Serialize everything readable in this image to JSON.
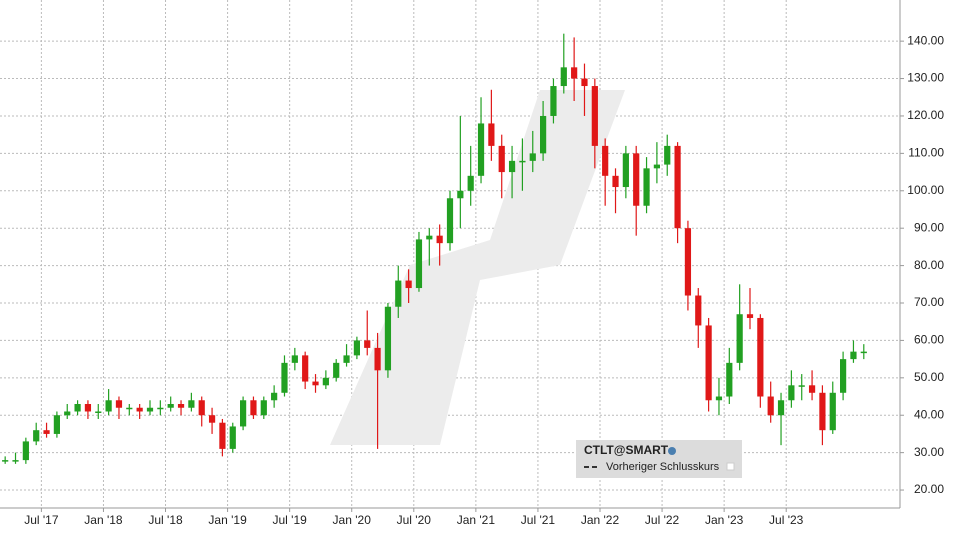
{
  "chart_data": {
    "type": "candlestick",
    "legend": {
      "symbol": "CTLT@SMART",
      "previous_close": "Vorheriger Schlusskurs"
    },
    "x": [
      "2017-03",
      "2017-04",
      "2017-05",
      "2017-06",
      "2017-07",
      "2017-08",
      "2017-09",
      "2017-10",
      "2017-11",
      "2017-12",
      "2018-01",
      "2018-02",
      "2018-03",
      "2018-04",
      "2018-05",
      "2018-06",
      "2018-07",
      "2018-08",
      "2018-09",
      "2018-10",
      "2018-11",
      "2018-12",
      "2019-01",
      "2019-02",
      "2019-03",
      "2019-04",
      "2019-05",
      "2019-06",
      "2019-07",
      "2019-08",
      "2019-09",
      "2019-10",
      "2019-11",
      "2019-12",
      "2020-01",
      "2020-02",
      "2020-03",
      "2020-04",
      "2020-05",
      "2020-06",
      "2020-07",
      "2020-08",
      "2020-09",
      "2020-10",
      "2020-11",
      "2020-12",
      "2021-01",
      "2021-02",
      "2021-03",
      "2021-04",
      "2021-05",
      "2021-06",
      "2021-07",
      "2021-08",
      "2021-09",
      "2021-10",
      "2021-11",
      "2021-12",
      "2022-01",
      "2022-02",
      "2022-03",
      "2022-04",
      "2022-05",
      "2022-06",
      "2022-07",
      "2022-08",
      "2022-09",
      "2022-10",
      "2022-11",
      "2022-12",
      "2023-01",
      "2023-02",
      "2023-03",
      "2023-04",
      "2023-05",
      "2023-06",
      "2023-07",
      "2023-08",
      "2023-09",
      "2023-10",
      "2023-11",
      "2023-12",
      "2024-01",
      "2024-02"
    ],
    "open": [
      28,
      28,
      28,
      33,
      36,
      35,
      40,
      41,
      43,
      41,
      41,
      44,
      42,
      42,
      41,
      42,
      42,
      43,
      42,
      44,
      40,
      38,
      31,
      37,
      44,
      40,
      44,
      46,
      54,
      56,
      49,
      48,
      50,
      54,
      56,
      60,
      58,
      52,
      69,
      76,
      74,
      87,
      88,
      86,
      98,
      100,
      104,
      118,
      112,
      105,
      108,
      108,
      110,
      120,
      128,
      133,
      130,
      128,
      112,
      104,
      101,
      110,
      96,
      106,
      107,
      112,
      90,
      72,
      64,
      44,
      45,
      54,
      67,
      66,
      45,
      40,
      44,
      48,
      48,
      46,
      36,
      46,
      55,
      57
    ],
    "high": [
      29,
      30,
      34,
      38,
      38,
      41,
      43,
      44,
      44,
      43,
      47,
      45,
      43,
      43,
      44,
      44,
      45,
      44,
      46,
      45,
      42,
      39,
      38,
      45,
      45,
      45,
      48,
      56,
      58,
      57,
      51,
      52,
      55,
      59,
      61,
      68,
      62,
      70,
      80,
      79,
      89,
      90,
      91,
      100,
      120,
      112,
      125,
      127,
      115,
      112,
      114,
      116,
      124,
      130,
      142,
      141,
      134,
      130,
      114,
      106,
      112,
      112,
      109,
      113,
      115,
      113,
      92,
      74,
      66,
      50,
      58,
      75,
      74,
      67,
      49,
      46,
      52,
      51,
      52,
      48,
      49,
      57,
      60,
      59
    ],
    "low": [
      27,
      27,
      27,
      32,
      34,
      34,
      39,
      40,
      39,
      39,
      40,
      39,
      40,
      39,
      40,
      40,
      41,
      40,
      41,
      37,
      35,
      29,
      30,
      36,
      39,
      39,
      42,
      45,
      52,
      47,
      46,
      47,
      49,
      53,
      55,
      56,
      31,
      50,
      66,
      70,
      73,
      80,
      80,
      84,
      90,
      96,
      102,
      108,
      98,
      98,
      100,
      105,
      108,
      118,
      126,
      124,
      120,
      106,
      96,
      94,
      98,
      88,
      94,
      102,
      104,
      86,
      68,
      58,
      41,
      40,
      43,
      52,
      63,
      42,
      38,
      32,
      42,
      44,
      44,
      32,
      35,
      44,
      54,
      55
    ],
    "close": [
      28,
      28,
      33,
      36,
      35,
      40,
      41,
      43,
      41,
      41,
      44,
      42,
      42,
      41,
      42,
      42,
      43,
      42,
      44,
      40,
      38,
      31,
      37,
      44,
      40,
      44,
      46,
      54,
      56,
      49,
      48,
      50,
      54,
      56,
      60,
      58,
      52,
      69,
      76,
      74,
      87,
      88,
      86,
      98,
      100,
      104,
      118,
      112,
      105,
      108,
      108,
      110,
      120,
      128,
      133,
      130,
      128,
      112,
      104,
      101,
      110,
      96,
      106,
      107,
      112,
      90,
      72,
      64,
      44,
      45,
      54,
      67,
      66,
      45,
      40,
      44,
      48,
      48,
      46,
      36,
      46,
      55,
      57,
      57
    ],
    "up_color": "#22a022",
    "down_color": "#e01818",
    "xlim": [
      "2017-03",
      "2024-06"
    ],
    "xticks": [
      {
        "value": "2017-07",
        "label": "Jul '17"
      },
      {
        "value": "2018-01",
        "label": "Jan '18"
      },
      {
        "value": "2018-07",
        "label": "Jul '18"
      },
      {
        "value": "2019-01",
        "label": "Jan '19"
      },
      {
        "value": "2019-07",
        "label": "Jul '19"
      },
      {
        "value": "2020-01",
        "label": "Jan '20"
      },
      {
        "value": "2020-07",
        "label": "Jul '20"
      },
      {
        "value": "2021-01",
        "label": "Jan '21"
      },
      {
        "value": "2021-07",
        "label": "Jul '21"
      },
      {
        "value": "2022-01",
        "label": "Jan '22"
      },
      {
        "value": "2022-07",
        "label": "Jul '22"
      },
      {
        "value": "2023-01",
        "label": "Jan '23"
      },
      {
        "value": "2023-07",
        "label": "Jul '23"
      }
    ],
    "ylim": [
      15.2,
      151
    ],
    "yticks": [
      {
        "value": 20,
        "label": "20.00"
      },
      {
        "value": 30,
        "label": "30.00"
      },
      {
        "value": 40,
        "label": "40.00"
      },
      {
        "value": 50,
        "label": "50.00"
      },
      {
        "value": 60,
        "label": "60.00"
      },
      {
        "value": 70,
        "label": "70.00"
      },
      {
        "value": 80,
        "label": "80.00"
      },
      {
        "value": 90,
        "label": "90.00"
      },
      {
        "value": 100,
        "label": "100.00"
      },
      {
        "value": 110,
        "label": "110.00"
      },
      {
        "value": 120,
        "label": "120.00"
      },
      {
        "value": 130,
        "label": "130.00"
      },
      {
        "value": 140,
        "label": "140.00"
      }
    ],
    "grid": true
  }
}
